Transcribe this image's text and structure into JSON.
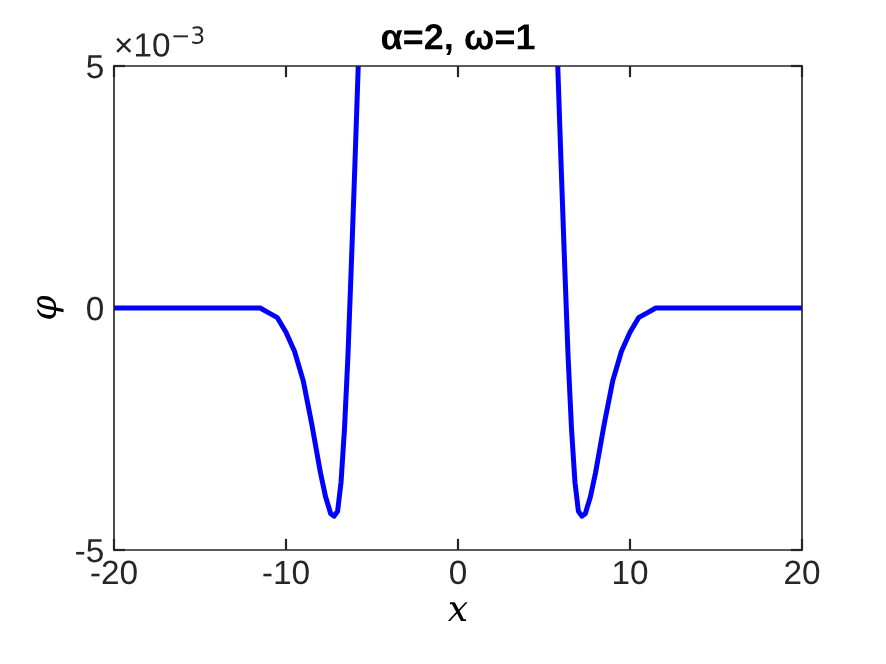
{
  "chart_data": {
    "type": "line",
    "title": "α=2, ω=1",
    "xlabel": "x",
    "ylabel": "φ",
    "annotations": [
      "×10$^{−3}$"
    ],
    "xlim": [
      -20,
      20
    ],
    "xticks": [
      -20,
      -10,
      0,
      10,
      20
    ],
    "ylim": [
      -5,
      5
    ],
    "yticks": [
      -5,
      0,
      5
    ],
    "grid": false,
    "legend": false,
    "marker": "none",
    "line_style": "solid",
    "series": [
      {
        "color": "#0000ff",
        "x": [
          -20,
          -14,
          -12,
          -11.5,
          -11,
          -10.5,
          -10,
          -9.5,
          -9,
          -8.5,
          -8,
          -7.7,
          -7.4,
          -7.2,
          -7.0,
          -6.8,
          -6.6,
          -6.4,
          -6.2,
          -6.0,
          -5.8,
          0,
          5.8,
          6.0,
          6.2,
          6.4,
          6.6,
          6.8,
          7.0,
          7.2,
          7.4,
          7.7,
          8,
          8.5,
          9,
          9.5,
          10,
          10.5,
          11,
          11.5,
          12,
          14,
          20
        ],
        "values": [
          0,
          0,
          0,
          0,
          -0.1,
          -0.2,
          -0.5,
          -0.9,
          -1.5,
          -2.4,
          -3.4,
          -3.9,
          -4.25,
          -4.3,
          -4.2,
          -3.6,
          -2.5,
          -1.0,
          0.9,
          2.9,
          5,
          null,
          5,
          2.9,
          0.9,
          -1.0,
          -2.5,
          -3.6,
          -4.2,
          -4.3,
          -4.25,
          -3.9,
          -3.4,
          -2.4,
          -1.5,
          -0.9,
          -0.5,
          -0.2,
          -0.1,
          0,
          0,
          0,
          0
        ]
      }
    ]
  }
}
